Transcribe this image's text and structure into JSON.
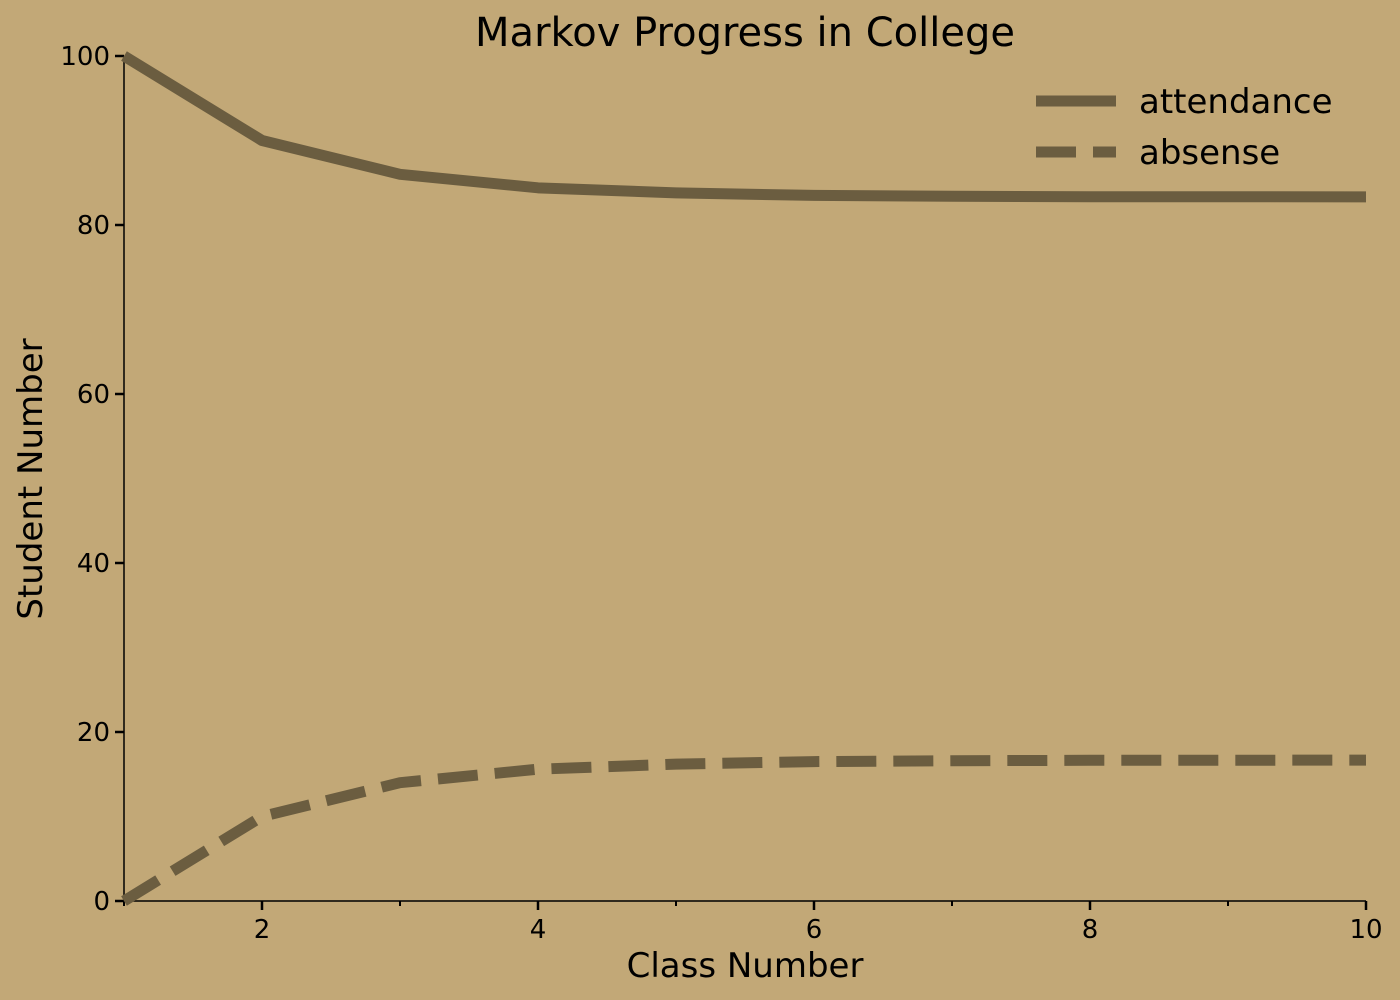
{
  "colors": {
    "background": "#c2a877",
    "series_line": "#6b5d40",
    "axis": "#000000"
  },
  "chart_data": {
    "type": "line",
    "title": "Markov Progress in College",
    "xlabel": "Class Number",
    "ylabel": "Student Number",
    "xlim": [
      1,
      10
    ],
    "ylim": [
      0,
      100
    ],
    "xticks": [
      2,
      4,
      6,
      8,
      10
    ],
    "xticks_minor": [
      1,
      3,
      5,
      7,
      9
    ],
    "yticks": [
      0,
      20,
      40,
      60,
      80,
      100
    ],
    "grid": false,
    "legend_position": "top-right",
    "x": [
      1,
      2,
      3,
      4,
      5,
      6,
      7,
      8,
      9,
      10
    ],
    "series": [
      {
        "name": "attendance",
        "style": "solid",
        "values": [
          100,
          90,
          86,
          84.4,
          83.8,
          83.5,
          83.4,
          83.35,
          83.34,
          83.33
        ]
      },
      {
        "name": "absense",
        "style": "dashed",
        "values": [
          0,
          10,
          14,
          15.6,
          16.2,
          16.5,
          16.6,
          16.65,
          16.66,
          16.67
        ]
      }
    ]
  }
}
